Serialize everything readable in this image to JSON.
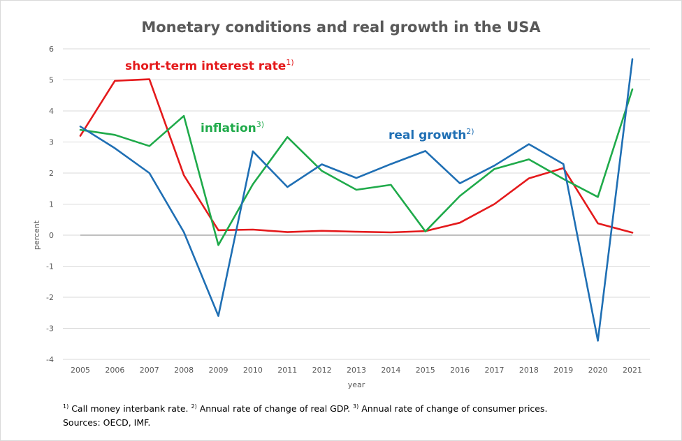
{
  "chart_data": {
    "type": "line",
    "title": "Monetary conditions and real growth in the USA",
    "xlabel": "year",
    "ylabel": "percent",
    "ylim": [
      -4,
      6
    ],
    "yticks": [
      -4,
      -3,
      -2,
      -1,
      0,
      1,
      2,
      3,
      4,
      5,
      6
    ],
    "grid": true,
    "categories": [
      "2005",
      "2006",
      "2007",
      "2008",
      "2009",
      "2010",
      "2011",
      "2012",
      "2013",
      "2014",
      "2015",
      "2016",
      "2017",
      "2018",
      "2019",
      "2020",
      "2021"
    ],
    "series": [
      {
        "name": "short-term interest rate",
        "note": "1)",
        "color": "#e41a1c",
        "values": [
          3.2,
          4.97,
          5.02,
          1.93,
          0.16,
          0.18,
          0.1,
          0.14,
          0.11,
          0.09,
          0.13,
          0.4,
          1.0,
          1.83,
          2.16,
          0.38,
          0.08
        ]
      },
      {
        "name": "inflation",
        "note": "3)",
        "color": "#1faa4a",
        "values": [
          3.39,
          3.23,
          2.87,
          3.84,
          -0.32,
          1.64,
          3.16,
          2.07,
          1.46,
          1.62,
          0.12,
          1.26,
          2.13,
          2.44,
          1.81,
          1.23,
          4.7
        ]
      },
      {
        "name": "real growth",
        "note": "2)",
        "color": "#1f6fb4",
        "values": [
          3.5,
          2.8,
          2.0,
          0.1,
          -2.6,
          2.7,
          1.55,
          2.28,
          1.84,
          2.29,
          2.71,
          1.67,
          2.24,
          2.93,
          2.29,
          -3.4,
          5.67
        ]
      }
    ]
  },
  "footnotes": {
    "mark1": "1)",
    "text1": " Call money interbank rate. ",
    "mark2": "2)",
    "text2": " Annual rate of change of real GDP. ",
    "mark3": "3)",
    "text3": " Annual rate of change of consumer prices.",
    "sources": "Sources: OECD, IMF."
  }
}
